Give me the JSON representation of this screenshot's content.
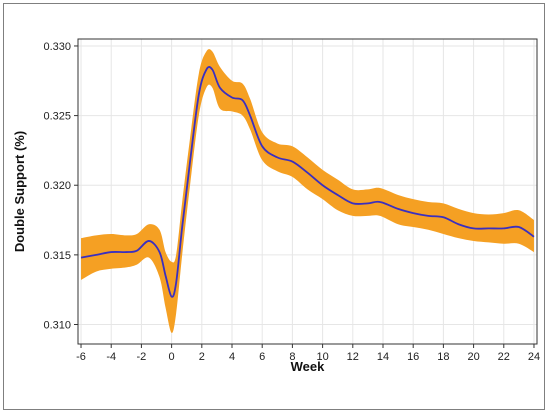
{
  "chart_data": {
    "type": "line",
    "xlabel": "Week",
    "ylabel": "Double Support (%)",
    "xlim": [
      -6.2,
      24.2
    ],
    "ylim": [
      0.3086,
      0.3305
    ],
    "grid": true,
    "x_ticks": [
      -6,
      -4,
      -2,
      0,
      2,
      4,
      6,
      8,
      10,
      12,
      14,
      16,
      18,
      20,
      22,
      24
    ],
    "x_tick_labels": [
      "-6",
      "-4",
      "-2",
      "0",
      "2",
      "4",
      "6",
      "8",
      "10",
      "12",
      "14",
      "16",
      "18",
      "20",
      "22",
      "24"
    ],
    "y_ticks": [
      0.31,
      0.315,
      0.32,
      0.325,
      0.33
    ],
    "y_tick_labels": [
      "0.310",
      "0.315",
      "0.320",
      "0.325",
      "0.330"
    ],
    "colors": {
      "line": "#3a2fc0",
      "band": "#f5a023",
      "grid": "#e6e6e6",
      "axis": "#333333"
    },
    "series": [
      {
        "x": [
          -6,
          -5,
          -4,
          -3,
          -2.3,
          -1.5,
          -0.8,
          -0.4,
          0,
          0.3,
          0.7,
          1.2,
          1.8,
          2.3,
          2.7,
          3.2,
          4,
          4.7,
          5.2,
          6,
          7,
          8,
          9,
          10,
          11,
          12,
          13,
          13.8,
          15,
          16,
          17,
          18,
          19,
          20,
          21,
          22,
          23,
          24
        ],
        "y": [
          0.3148,
          0.315,
          0.3152,
          0.3152,
          0.3153,
          0.316,
          0.3152,
          0.3135,
          0.312,
          0.313,
          0.317,
          0.3215,
          0.3265,
          0.3283,
          0.3283,
          0.327,
          0.3263,
          0.3261,
          0.325,
          0.3228,
          0.322,
          0.3217,
          0.3209,
          0.32,
          0.3193,
          0.3187,
          0.3187,
          0.3188,
          0.3183,
          0.318,
          0.3178,
          0.3177,
          0.3172,
          0.3169,
          0.3169,
          0.3169,
          0.317,
          0.3163
        ],
        "lower": [
          0.3132,
          0.3138,
          0.314,
          0.3141,
          0.3143,
          0.3148,
          0.3134,
          0.3112,
          0.3094,
          0.3108,
          0.315,
          0.3198,
          0.325,
          0.327,
          0.327,
          0.3255,
          0.3253,
          0.325,
          0.324,
          0.3218,
          0.321,
          0.3206,
          0.3197,
          0.319,
          0.3182,
          0.3178,
          0.3178,
          0.3178,
          0.3172,
          0.317,
          0.3168,
          0.3165,
          0.3162,
          0.316,
          0.3159,
          0.3158,
          0.3158,
          0.3152
        ],
        "upper": [
          0.3162,
          0.3164,
          0.3165,
          0.3164,
          0.3165,
          0.3172,
          0.3168,
          0.3152,
          0.3145,
          0.315,
          0.3188,
          0.3232,
          0.328,
          0.3296,
          0.3296,
          0.3285,
          0.3275,
          0.3273,
          0.3262,
          0.3238,
          0.323,
          0.3228,
          0.322,
          0.3211,
          0.3204,
          0.3197,
          0.3197,
          0.3198,
          0.3193,
          0.319,
          0.3188,
          0.3187,
          0.3183,
          0.318,
          0.3179,
          0.318,
          0.3182,
          0.3175
        ]
      }
    ]
  }
}
